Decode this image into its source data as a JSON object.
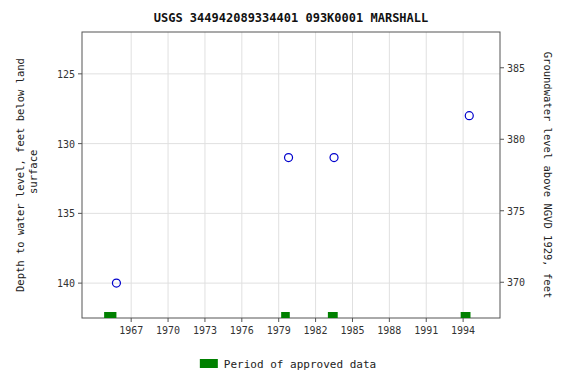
{
  "chart_data": {
    "type": "scatter",
    "title": "USGS 344942089334401 093K0001  MARSHALL",
    "x": [
      1965.8,
      1979.8,
      1983.5,
      1994.5
    ],
    "values": [
      140.0,
      131.0,
      131.0,
      128.0
    ],
    "color": "#0000cc",
    "marker": "open-circle",
    "xlim": [
      1963.0,
      1997.0
    ],
    "ylim": [
      142.5,
      122.0
    ],
    "y2lim": [
      367.5,
      387.5
    ],
    "xticks": [
      1967,
      1970,
      1973,
      1976,
      1979,
      1982,
      1985,
      1988,
      1991,
      1994
    ],
    "yticks": [
      125,
      130,
      135,
      140
    ],
    "y2ticks": [
      370,
      375,
      380,
      385
    ],
    "ylabel": "Depth to water level, feet below land\n surface",
    "y2label": "Groundwater level above NGVD 1929, feet",
    "grid": true,
    "legend": "bottom",
    "approved_periods": {
      "name": "Period of approved data",
      "color": "#008000",
      "ranges": [
        [
          1964.8,
          1965.8
        ],
        [
          1979.2,
          1979.9
        ],
        [
          1983.0,
          1983.8
        ],
        [
          1993.8,
          1994.6
        ]
      ]
    }
  }
}
